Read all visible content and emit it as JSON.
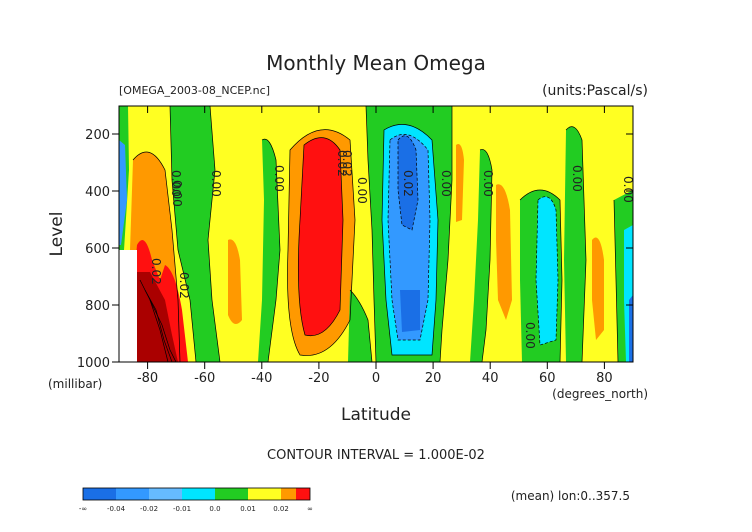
{
  "chart_data": {
    "type": "contour",
    "title": "Monthly Mean Omega",
    "file_label": "[OMEGA_2003-08_NCEP.nc]",
    "units_label": "(units:Pascal/s)",
    "xlabel": "Latitude",
    "x_unit": "(degrees_north)",
    "ylabel": "Level",
    "y_unit": "(millibar)",
    "xlim": [
      -90,
      90
    ],
    "ylim": [
      1000,
      100
    ],
    "x_ticks": [
      "-80",
      "-60",
      "-40",
      "-20",
      "0",
      "20",
      "40",
      "60",
      "80"
    ],
    "y_ticks": [
      "200",
      "400",
      "600",
      "800",
      "1000"
    ],
    "contour_interval_text": "CONTOUR INTERVAL = 1.000E-02",
    "footnote": "(mean) lon:0..357.5",
    "colorbar": {
      "labels": [
        "-∞",
        "-0.04",
        "-0.02",
        "-0.01",
        "0.0",
        "0.01",
        "0.02",
        "∞"
      ],
      "colors": [
        "#1a6fe6",
        "#3399ff",
        "#66bbff",
        "#00e5ff",
        "#22cc22",
        "#ffff22",
        "#ff9900",
        "#ff1010"
      ]
    },
    "contour_labels": [
      "0.02",
      "0.00",
      "0.00",
      "0.00",
      "0.02",
      "0.00",
      "0.02",
      "0.00",
      "0.00",
      "0.00",
      "0.00",
      "0.00",
      "0.00",
      "0.02",
      "0.02"
    ],
    "fill_colors": {
      "strong_neg": "#1a6fe6",
      "neg": "#3399ff",
      "weak_neg": "#00e5ff",
      "near_zero_neg": "#22cc22",
      "near_zero_pos": "#ffff22",
      "pos": "#ff9900",
      "strong_pos": "#ff1010",
      "very_strong_pos": "#aa0000"
    }
  }
}
